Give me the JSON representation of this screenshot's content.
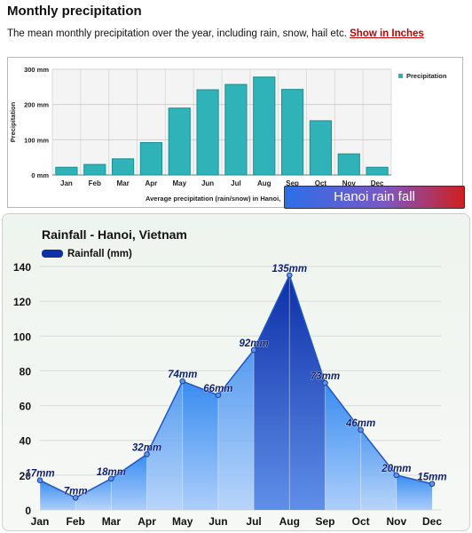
{
  "header": {
    "title": "Monthly precipitation",
    "description": "The mean monthly precipitation over the year, including rain, snow, hail etc.",
    "link_label": "Show in Inches"
  },
  "banner": {
    "label": "Hanoi rain fall"
  },
  "colors": {
    "bar_fill": "#2fb3b8",
    "bar_stroke": "#1d8f94",
    "area_dark": "#0d2fa8",
    "area_light": "#2f86f0",
    "link": "#c00000"
  },
  "chart_data": [
    {
      "type": "bar",
      "title": "",
      "xlabel": "Average precipitation (rain/snow) in Hanoi,",
      "ylabel": "Precipitation",
      "categories": [
        "Jan",
        "Feb",
        "Mar",
        "Apr",
        "May",
        "Jun",
        "Jul",
        "Aug",
        "Sep",
        "Oct",
        "Nov",
        "Dec"
      ],
      "series": [
        {
          "name": "Precipitation",
          "values": [
            22,
            30,
            46,
            92,
            190,
            242,
            257,
            278,
            243,
            154,
            60,
            22
          ]
        }
      ],
      "ylim": [
        0,
        300
      ],
      "yticks": [
        "0 mm",
        "100 mm",
        "200 mm",
        "300 mm"
      ],
      "grid": true,
      "legend": "top-right"
    },
    {
      "type": "area",
      "title": "Rainfall - Hanoi, Vietnam",
      "xlabel": "",
      "ylabel": "",
      "categories": [
        "Jan",
        "Feb",
        "Mar",
        "Apr",
        "May",
        "Jun",
        "Jul",
        "Aug",
        "Sep",
        "Oct",
        "Nov",
        "Dec"
      ],
      "series": [
        {
          "name": "Rainfall (mm)",
          "values": [
            17,
            7,
            18,
            32,
            74,
            66,
            92,
            135,
            73,
            46,
            20,
            15
          ]
        }
      ],
      "data_labels": [
        "17mm",
        "7mm",
        "18mm",
        "32mm",
        "74mm",
        "66mm",
        "92mm",
        "135mm",
        "73mm",
        "46mm",
        "20mm",
        "15mm"
      ],
      "ylim": [
        0,
        140
      ],
      "yticks": [
        "0",
        "20",
        "40",
        "60",
        "80",
        "100",
        "120",
        "140"
      ],
      "grid": true,
      "legend": "top-left"
    }
  ]
}
